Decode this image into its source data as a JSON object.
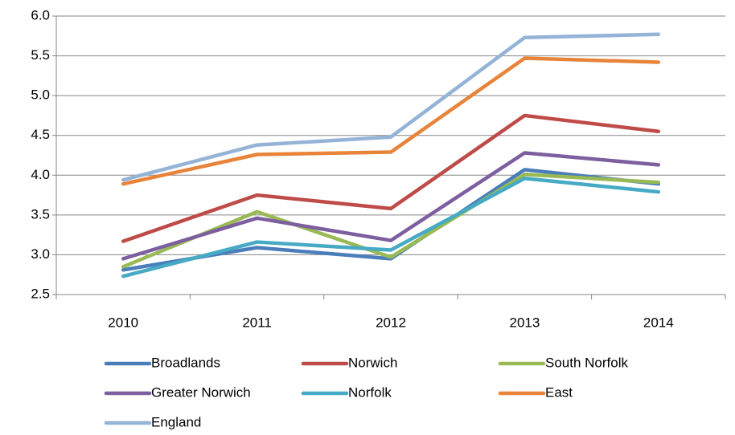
{
  "chart_data": {
    "type": "line",
    "categories": [
      "2010",
      "2011",
      "2012",
      "2013",
      "2014"
    ],
    "series": [
      {
        "name": "Broadlands",
        "color": "#4a7ebb",
        "values": [
          2.81,
          3.09,
          2.95,
          4.07,
          3.89
        ]
      },
      {
        "name": "Norwich",
        "color": "#be4b48",
        "values": [
          3.17,
          3.75,
          3.58,
          4.75,
          4.55
        ]
      },
      {
        "name": "South Norfolk",
        "color": "#98b954",
        "values": [
          2.85,
          3.54,
          2.97,
          4.01,
          3.91
        ]
      },
      {
        "name": "Greater Norwich",
        "color": "#7d5fa0",
        "values": [
          2.95,
          3.46,
          3.18,
          4.28,
          4.13
        ]
      },
      {
        "name": "Norfolk",
        "color": "#46aac5",
        "values": [
          2.73,
          3.16,
          3.06,
          3.96,
          3.79
        ]
      },
      {
        "name": "East",
        "color": "#e8843a",
        "values": [
          3.89,
          4.26,
          4.29,
          5.47,
          5.42
        ]
      },
      {
        "name": "England",
        "color": "#95b3d7",
        "values": [
          3.94,
          4.38,
          4.48,
          5.73,
          5.77
        ]
      }
    ],
    "ylim": [
      2.5,
      6.0
    ],
    "yticks": [
      {
        "value": 2.5,
        "label": "2.5"
      },
      {
        "value": 3.0,
        "label": "3.0"
      },
      {
        "value": 3.5,
        "label": "3.5"
      },
      {
        "value": 4.0,
        "label": "4.0"
      },
      {
        "value": 4.5,
        "label": "4.5"
      },
      {
        "value": 5.0,
        "label": "5.0"
      },
      {
        "value": 5.5,
        "label": "5.5"
      },
      {
        "value": 6.0,
        "label": "6.0"
      }
    ],
    "grid": true,
    "legend": "bottom"
  }
}
